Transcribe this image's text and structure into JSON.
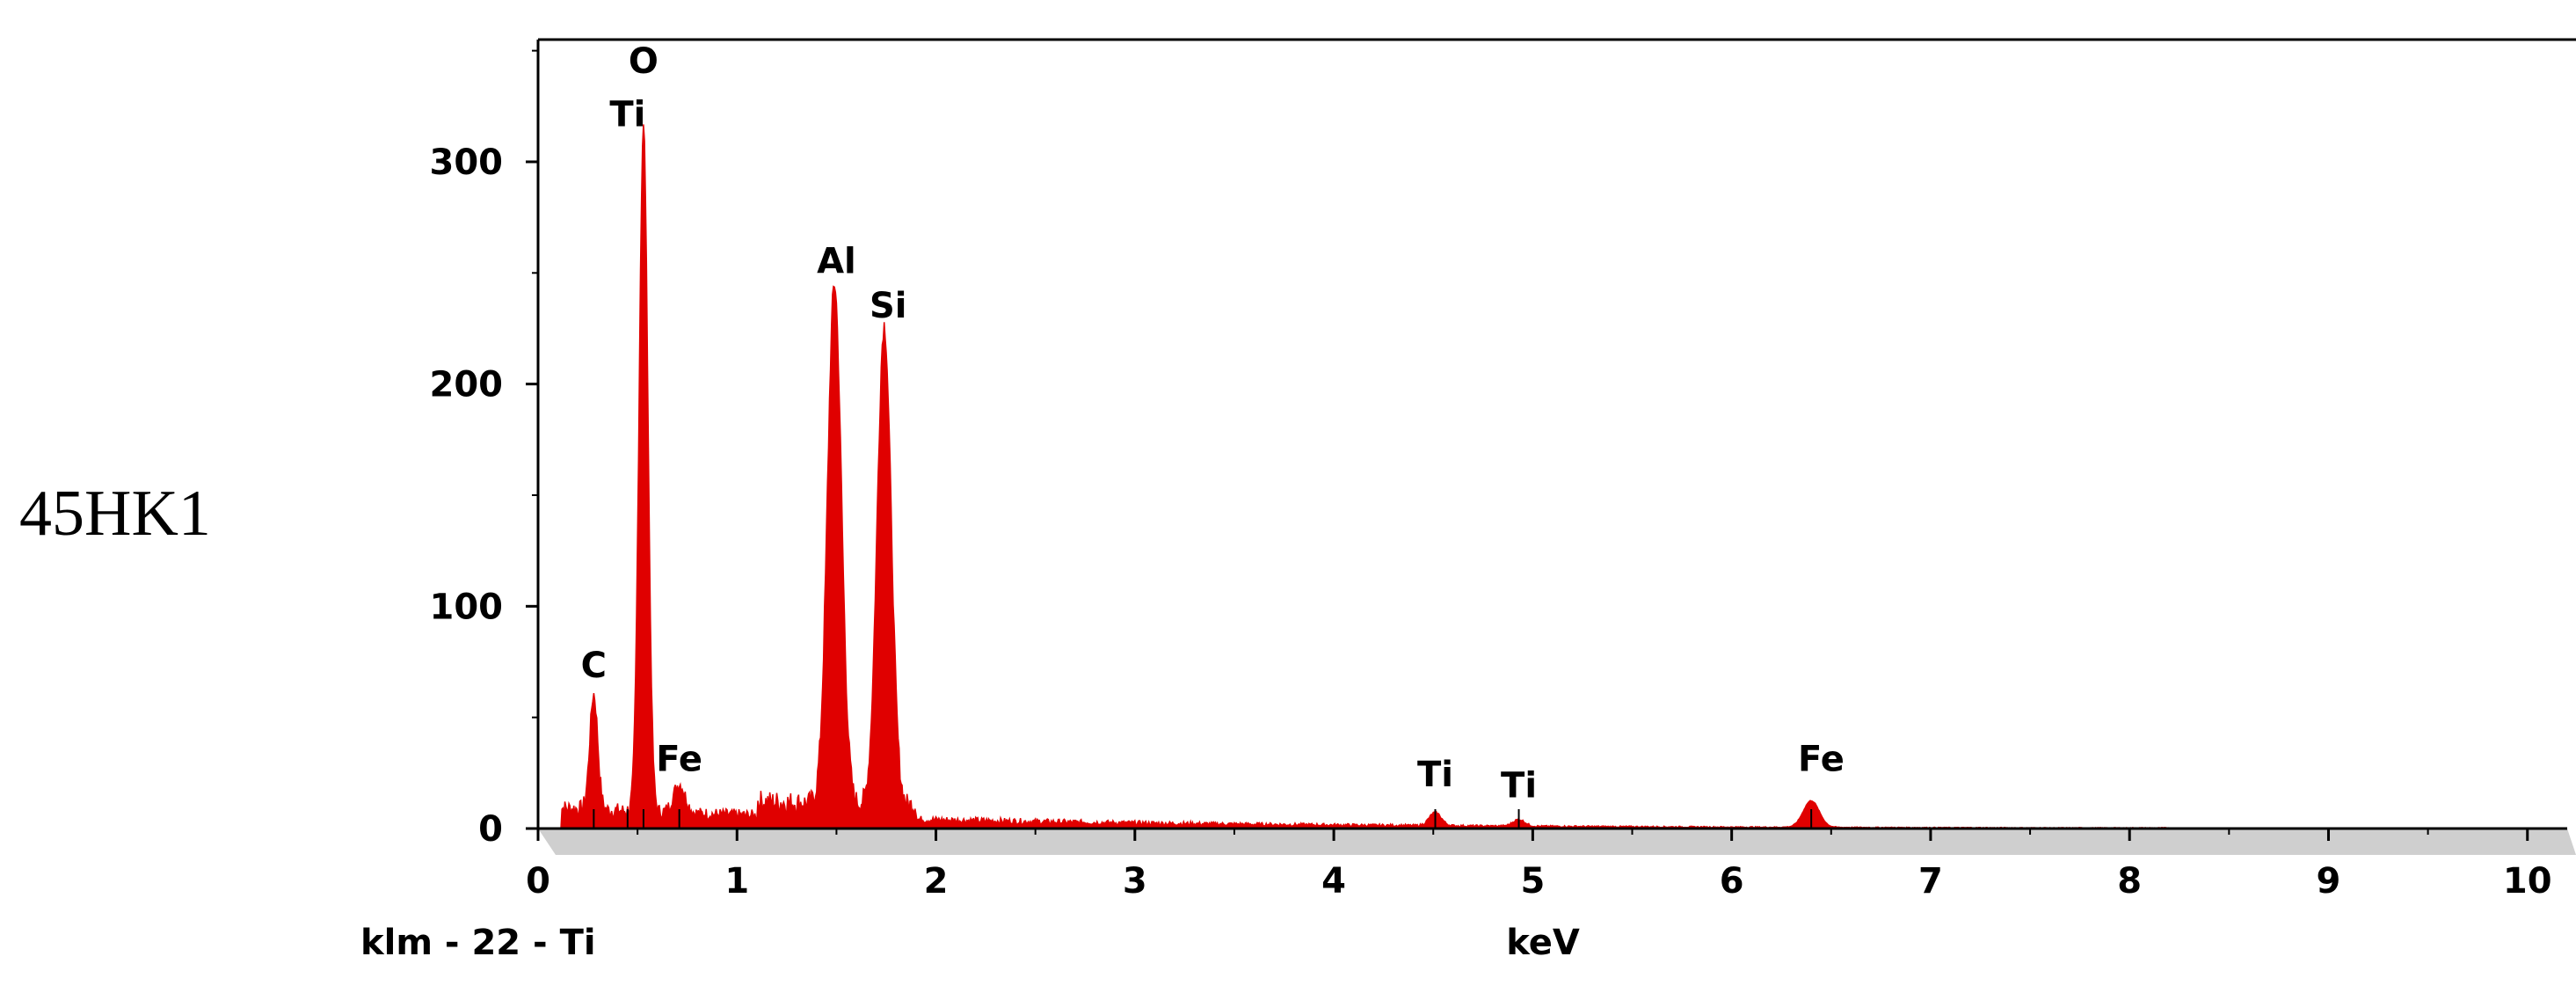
{
  "sample_label": "45HK1",
  "chart_data": {
    "type": "area",
    "title": "",
    "xlabel": "keV",
    "ylabel": "",
    "spectrum_label": "klm - 22 - Ti",
    "xlim": [
      0,
      10.2
    ],
    "ylim": [
      0,
      355
    ],
    "x_ticks": [
      "0",
      "1",
      "2",
      "3",
      "4",
      "5",
      "6",
      "7",
      "8",
      "9",
      "10"
    ],
    "y_ticks": [
      "0",
      "100",
      "200",
      "300"
    ],
    "grid": false,
    "fill_color": "#e00000",
    "peaks": [
      {
        "element": "C",
        "energy": 0.28,
        "counts": 52,
        "width": 0.02
      },
      {
        "element": "O",
        "energy": 0.53,
        "counts": 308,
        "width": 0.022
      },
      {
        "element": "Fe",
        "energy": 0.71,
        "counts": 13,
        "width": 0.03
      },
      {
        "element": "Al",
        "energy": 1.49,
        "counts": 234,
        "width": 0.035
      },
      {
        "element": "Si",
        "energy": 1.74,
        "counts": 216,
        "width": 0.035
      },
      {
        "element": "Ti",
        "energy": 4.51,
        "counts": 6,
        "width": 0.03
      },
      {
        "element": "Ti",
        "energy": 4.93,
        "counts": 3,
        "width": 0.03
      },
      {
        "element": "Fe",
        "energy": 6.4,
        "counts": 12,
        "width": 0.04
      }
    ],
    "annotations": [
      {
        "text": "O",
        "x": 0.53,
        "y": 340
      },
      {
        "text": "Ti",
        "x": 0.45,
        "y": 316
      },
      {
        "text": "C",
        "x": 0.28,
        "y": 68
      },
      {
        "text": "Fe",
        "x": 0.71,
        "y": 26
      },
      {
        "text": "Al",
        "x": 1.5,
        "y": 250
      },
      {
        "text": "Si",
        "x": 1.76,
        "y": 230
      },
      {
        "text": "Ti",
        "x": 4.51,
        "y": 19
      },
      {
        "text": "Ti",
        "x": 4.93,
        "y": 14
      },
      {
        "text": "Fe",
        "x": 6.45,
        "y": 26
      }
    ],
    "markers": [
      {
        "x": 0.28
      },
      {
        "x": 0.45
      },
      {
        "x": 0.53
      },
      {
        "x": 0.71
      },
      {
        "x": 4.51
      },
      {
        "x": 4.93
      },
      {
        "x": 6.4
      }
    ]
  }
}
